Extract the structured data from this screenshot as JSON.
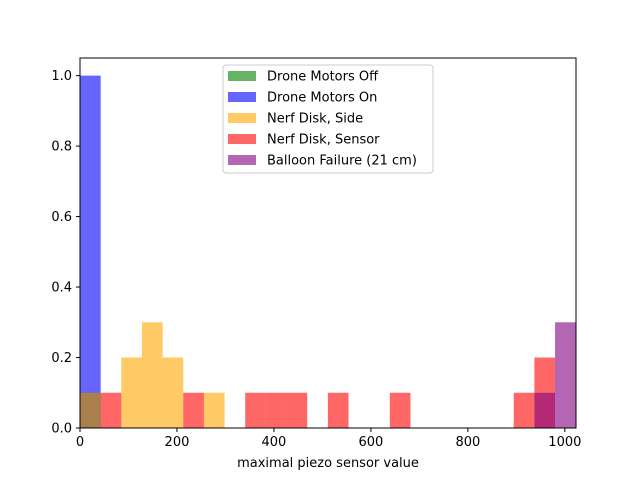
{
  "chart_data": {
    "type": "bar",
    "xlabel": "maximal piezo sensor value",
    "ylabel": "",
    "xlim": [
      0,
      1023
    ],
    "ylim": [
      0,
      1.05
    ],
    "xticks": [
      0,
      200,
      400,
      600,
      800,
      1000
    ],
    "yticks": [
      0.0,
      0.2,
      0.4,
      0.6,
      0.8,
      1.0
    ],
    "xtick_labels": [
      "0",
      "200",
      "400",
      "600",
      "800",
      "1000"
    ],
    "ytick_labels": [
      "0.0",
      "0.2",
      "0.4",
      "0.6",
      "0.8",
      "1.0"
    ],
    "bin_edges": [
      0,
      42.6,
      85.2,
      127.8,
      170.4,
      213,
      255.6,
      298.2,
      340.8,
      383.4,
      426,
      468.6,
      511.2,
      553.8,
      596.4,
      639,
      681.6,
      724.2,
      766.8,
      809.4,
      852,
      894.6,
      937.2,
      979.8,
      1023
    ],
    "grid": false,
    "legend_position": "upper-center",
    "series": [
      {
        "name": "Drone Motors Off",
        "color": "#008000",
        "opacity": 0.6,
        "values": [
          0.1,
          0,
          0,
          0,
          0,
          0,
          0,
          0,
          0,
          0,
          0,
          0,
          0,
          0,
          0,
          0,
          0,
          0,
          0,
          0,
          0,
          0,
          0,
          0
        ]
      },
      {
        "name": "Drone Motors On",
        "color": "#0000ff",
        "opacity": 0.6,
        "values": [
          1.0,
          0,
          0,
          0,
          0,
          0,
          0,
          0,
          0,
          0,
          0,
          0,
          0,
          0,
          0,
          0,
          0,
          0,
          0,
          0,
          0,
          0,
          0,
          0
        ]
      },
      {
        "name": "Nerf Disk, Side",
        "color": "#ffa500",
        "opacity": 0.6,
        "values": [
          0.1,
          0,
          0.2,
          0.3,
          0.2,
          0,
          0.1,
          0,
          0,
          0,
          0,
          0,
          0,
          0,
          0,
          0,
          0,
          0,
          0,
          0,
          0,
          0,
          0,
          0
        ]
      },
      {
        "name": "Nerf Disk, Sensor",
        "color": "#ff0000",
        "opacity": 0.6,
        "values": [
          0,
          0.1,
          0,
          0,
          0,
          0.1,
          0,
          0,
          0.1,
          0.1,
          0.1,
          0,
          0.1,
          0,
          0,
          0.1,
          0,
          0,
          0,
          0,
          0,
          0.1,
          0.2,
          0
        ]
      },
      {
        "name": "Balloon Failure (21 cm)",
        "color": "#800080",
        "opacity": 0.6,
        "values": [
          0,
          0,
          0,
          0,
          0,
          0,
          0,
          0,
          0,
          0,
          0,
          0,
          0,
          0,
          0,
          0,
          0,
          0,
          0,
          0,
          0,
          0,
          0.1,
          0.3
        ]
      }
    ]
  }
}
